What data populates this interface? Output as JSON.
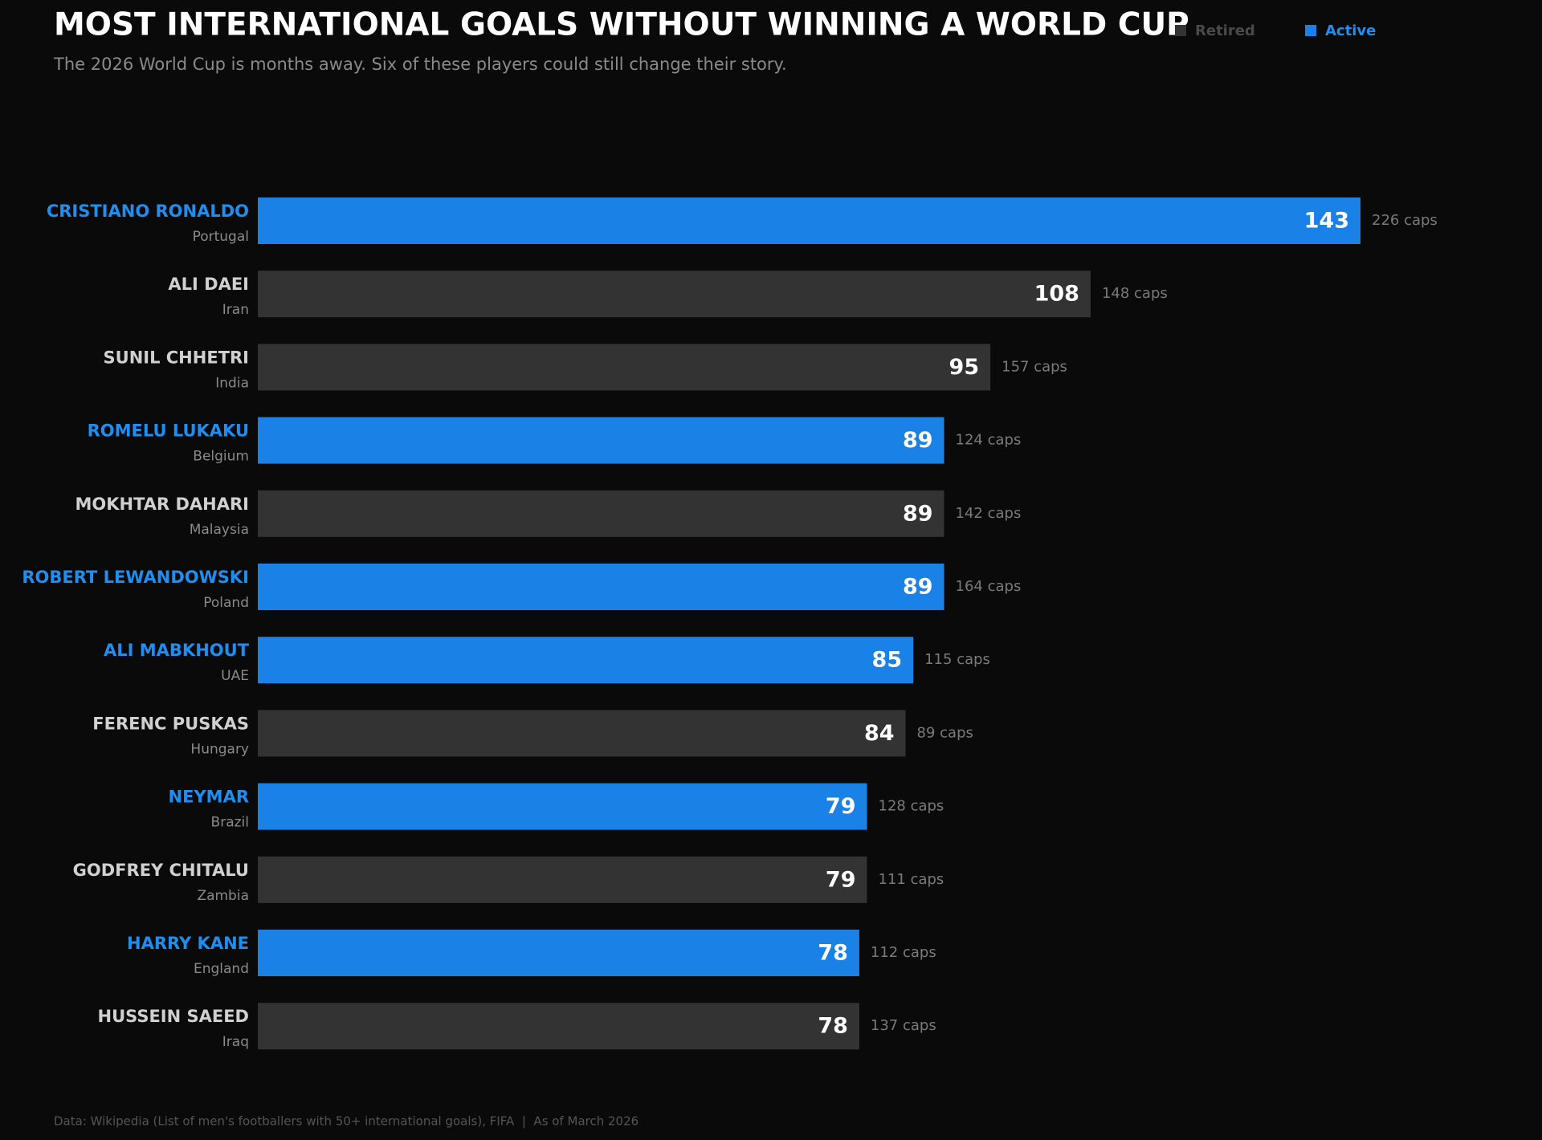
{
  "chart_data": {
    "type": "bar",
    "title": "MOST INTERNATIONAL GOALS WITHOUT WINNING A WORLD CUP",
    "subtitle": "The 2026 World Cup is months away. Six of these players could still change their story.",
    "legend": [
      {
        "name": "Retired",
        "color": "#333333",
        "text_color": "#4a4a4a"
      },
      {
        "name": "Active",
        "color": "#1a82e6",
        "text_color": "#1f8ef1"
      }
    ],
    "categories": [
      "CRISTIANO RONALDO",
      "ALI DAEI",
      "SUNIL CHHETRI",
      "ROMELU LUKAKU",
      "MOKHTAR DAHARI",
      "ROBERT LEWANDOWSKI",
      "ALI MABKHOUT",
      "FERENC PUSKAS",
      "NEYMAR",
      "GODFREY CHITALU",
      "HARRY KANE",
      "HUSSEIN SAEED"
    ],
    "countries": [
      "Portugal",
      "Iran",
      "India",
      "Belgium",
      "Malaysia",
      "Poland",
      "UAE",
      "Hungary",
      "Brazil",
      "Zambia",
      "England",
      "Iraq"
    ],
    "values": [
      143,
      108,
      95,
      89,
      89,
      89,
      85,
      84,
      79,
      79,
      78,
      78
    ],
    "caps": [
      "226 caps",
      "148 caps",
      "157 caps",
      "124 caps",
      "142 caps",
      "164 caps",
      "115 caps",
      "89 caps",
      "128 caps",
      "111 caps",
      "112 caps",
      "137 caps"
    ],
    "status": [
      1,
      0,
      0,
      1,
      0,
      1,
      1,
      0,
      1,
      0,
      1,
      0
    ],
    "xlim": [
      0,
      143
    ],
    "footer": "Data: Wikipedia (List of men's footballers with 50+ international goals), FIFA  |  As of March 2026"
  }
}
